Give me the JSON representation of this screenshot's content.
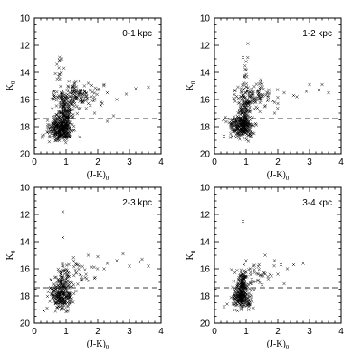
{
  "chart_data": [
    {
      "type": "scatter",
      "panel_label": "0-1 kpc",
      "xlabel": "(J-K)",
      "xlabel_sub": "0",
      "ylabel": "K",
      "ylabel_sub": "0",
      "xlim": [
        0,
        4
      ],
      "ylim": [
        20,
        10
      ],
      "y_inverted": true,
      "xticks": [
        "0",
        "1",
        "2",
        "3",
        "4"
      ],
      "yticks": [
        "10",
        "12",
        "14",
        "16",
        "18",
        "20"
      ],
      "limit_line_y": 17.4,
      "clusters": [
        {
          "cx": 0.85,
          "cy": 18.1,
          "sx": 0.18,
          "sy": 0.45,
          "n": 300
        },
        {
          "cx": 0.95,
          "cy": 16.9,
          "sx": 0.1,
          "sy": 0.7,
          "n": 140
        },
        {
          "cx": 1.25,
          "cy": 15.7,
          "sx": 0.35,
          "sy": 0.5,
          "n": 160
        },
        {
          "cx": 0.78,
          "cy": 13.8,
          "sx": 0.06,
          "sy": 0.6,
          "n": 14
        }
      ],
      "points": [
        [
          2.0,
          15.3
        ],
        [
          2.3,
          15.5
        ],
        [
          2.6,
          16.0
        ],
        [
          2.9,
          15.6
        ],
        [
          3.2,
          15.2
        ],
        [
          3.6,
          15.1
        ],
        [
          2.1,
          16.2
        ],
        [
          1.9,
          17.0
        ],
        [
          2.3,
          17.6
        ],
        [
          2.5,
          17.2
        ],
        [
          0.4,
          18.4
        ],
        [
          0.3,
          18.6
        ],
        [
          0.25,
          18.8
        ],
        [
          1.7,
          14.8
        ],
        [
          2.2,
          14.9
        ]
      ]
    },
    {
      "type": "scatter",
      "panel_label": "1-2 kpc",
      "xlabel": "(J-K)",
      "xlabel_sub": "0",
      "ylabel": "K",
      "ylabel_sub": "0",
      "xlim": [
        0,
        4
      ],
      "ylim": [
        20,
        10
      ],
      "y_inverted": true,
      "xticks": [
        "0",
        "1",
        "2",
        "3",
        "4"
      ],
      "yticks": [
        "10",
        "12",
        "14",
        "16",
        "18",
        "20"
      ],
      "limit_line_y": 17.4,
      "clusters": [
        {
          "cx": 0.85,
          "cy": 18.0,
          "sx": 0.17,
          "sy": 0.45,
          "n": 250
        },
        {
          "cx": 0.95,
          "cy": 16.9,
          "sx": 0.1,
          "sy": 0.7,
          "n": 110
        },
        {
          "cx": 1.25,
          "cy": 15.7,
          "sx": 0.3,
          "sy": 0.5,
          "n": 110
        },
        {
          "cx": 0.95,
          "cy": 14.2,
          "sx": 0.06,
          "sy": 0.7,
          "n": 14
        }
      ],
      "points": [
        [
          2.2,
          15.5
        ],
        [
          2.6,
          15.8
        ],
        [
          2.9,
          15.4
        ],
        [
          3.0,
          14.9
        ],
        [
          3.3,
          15.3
        ],
        [
          3.4,
          14.9
        ],
        [
          3.6,
          15.5
        ],
        [
          2.0,
          16.3
        ],
        [
          1.9,
          17.0
        ],
        [
          2.5,
          15.7
        ],
        [
          0.3,
          18.7
        ],
        [
          0.5,
          18.8
        ],
        [
          0.9,
          12.9
        ],
        [
          1.0,
          13.2
        ]
      ]
    },
    {
      "type": "scatter",
      "panel_label": "2-3 kpc",
      "xlabel": "(J-K)",
      "xlabel_sub": "0",
      "ylabel": "K",
      "ylabel_sub": "0",
      "xlim": [
        0,
        4
      ],
      "ylim": [
        20,
        10
      ],
      "y_inverted": true,
      "xticks": [
        "0",
        "1",
        "2",
        "3",
        "4"
      ],
      "yticks": [
        "10",
        "12",
        "14",
        "16",
        "18",
        "20"
      ],
      "limit_line_y": 17.4,
      "clusters": [
        {
          "cx": 0.85,
          "cy": 18.0,
          "sx": 0.17,
          "sy": 0.5,
          "n": 220
        },
        {
          "cx": 0.9,
          "cy": 16.9,
          "sx": 0.1,
          "sy": 0.5,
          "n": 60
        },
        {
          "cx": 1.3,
          "cy": 16.2,
          "sx": 0.35,
          "sy": 0.45,
          "n": 45
        }
      ],
      "points": [
        [
          0.9,
          11.8
        ],
        [
          0.9,
          13.7
        ],
        [
          1.7,
          15.0
        ],
        [
          2.0,
          15.1
        ],
        [
          2.3,
          15.6
        ],
        [
          2.6,
          15.4
        ],
        [
          2.8,
          14.9
        ],
        [
          3.0,
          15.8
        ],
        [
          3.3,
          15.5
        ],
        [
          3.6,
          15.8
        ],
        [
          3.4,
          15.3
        ],
        [
          2.2,
          16.0
        ],
        [
          1.9,
          16.7
        ],
        [
          0.3,
          19.1
        ],
        [
          0.4,
          18.9
        ]
      ]
    },
    {
      "type": "scatter",
      "panel_label": "3-4 kpc",
      "xlabel": "(J-K)",
      "xlabel_sub": "0",
      "ylabel": "K",
      "ylabel_sub": "0",
      "xlim": [
        0,
        4
      ],
      "ylim": [
        20,
        10
      ],
      "y_inverted": true,
      "xticks": [
        "0",
        "1",
        "2",
        "3",
        "4"
      ],
      "yticks": [
        "10",
        "12",
        "14",
        "16",
        "18",
        "20"
      ],
      "limit_line_y": 17.4,
      "clusters": [
        {
          "cx": 0.85,
          "cy": 18.0,
          "sx": 0.15,
          "sy": 0.45,
          "n": 230
        },
        {
          "cx": 0.9,
          "cy": 17.0,
          "sx": 0.08,
          "sy": 0.5,
          "n": 80
        },
        {
          "cx": 1.3,
          "cy": 16.5,
          "sx": 0.3,
          "sy": 0.4,
          "n": 40
        }
      ],
      "points": [
        [
          0.9,
          12.5
        ],
        [
          1.6,
          15.0
        ],
        [
          1.9,
          15.4
        ],
        [
          2.1,
          15.7
        ],
        [
          2.3,
          16.0
        ],
        [
          2.5,
          15.7
        ],
        [
          2.8,
          15.6
        ],
        [
          2.0,
          16.4
        ],
        [
          2.2,
          17.1
        ],
        [
          0.4,
          18.6
        ],
        [
          0.3,
          18.8
        ],
        [
          1.0,
          15.4
        ]
      ]
    }
  ]
}
